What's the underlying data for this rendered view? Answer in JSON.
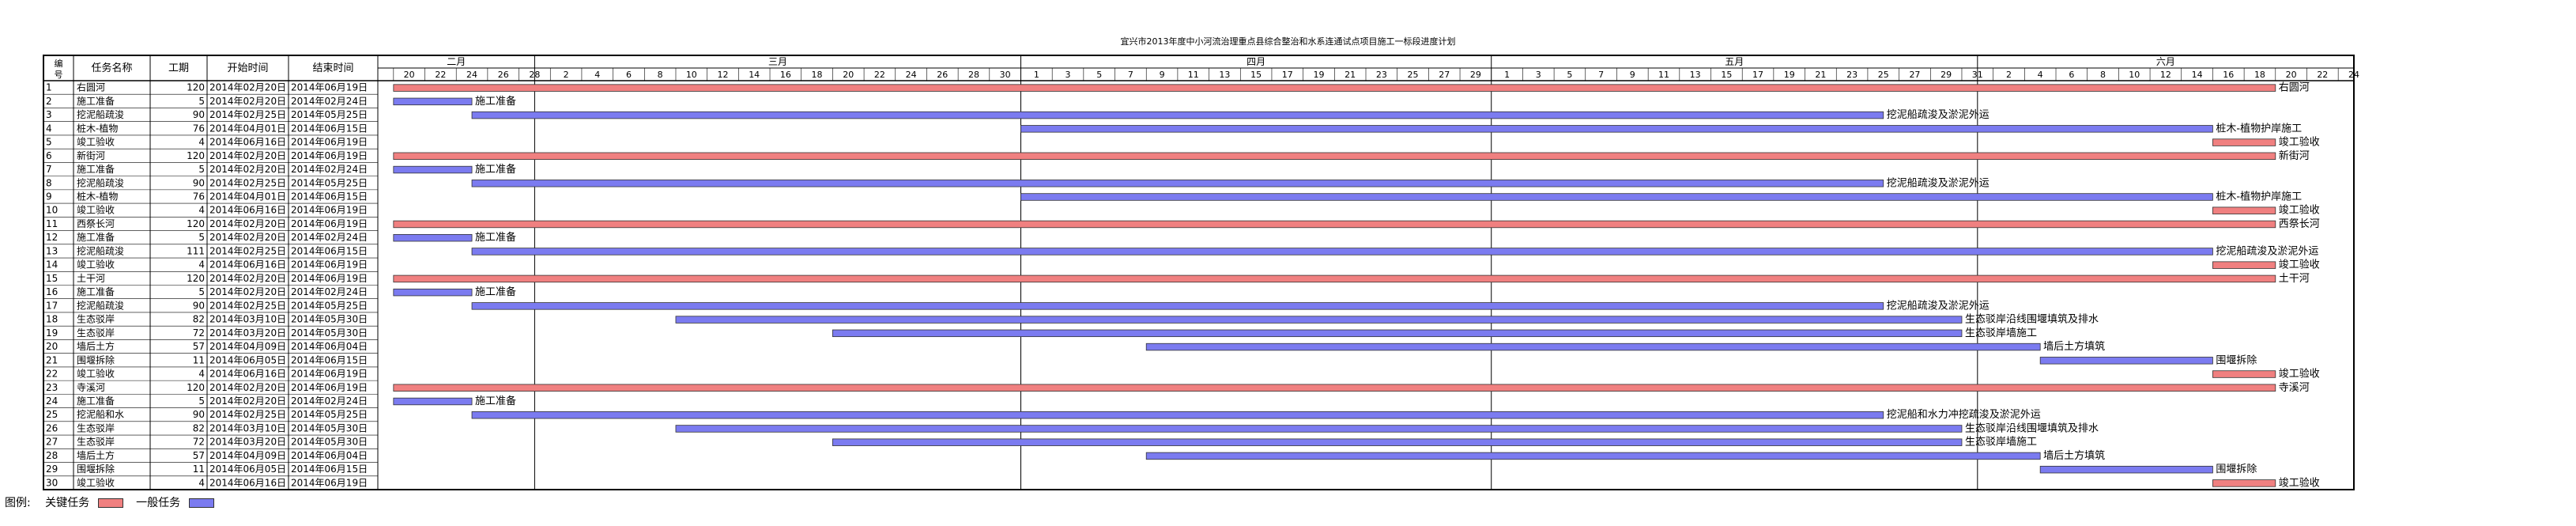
{
  "title": "宜兴市2013年度中小河流治理重点县综合整治和水系连通试点项目施工一标段进度计划",
  "legend": {
    "label": "图例:",
    "critical": "关键任务",
    "normal": "一般任务",
    "critical_color": "#f08080",
    "normal_color": "#7b7bf0"
  },
  "columns": {
    "id": "编号",
    "name": "任务名称",
    "duration": "工期",
    "start": "开始时间",
    "end": "结束时间"
  },
  "months": [
    {
      "label": "二月",
      "days": [
        "20",
        "22",
        "24",
        "26",
        "28"
      ]
    },
    {
      "label": "三月",
      "days": [
        "2",
        "4",
        "6",
        "8",
        "10",
        "12",
        "14",
        "16",
        "18",
        "20",
        "22",
        "24",
        "26",
        "28",
        "30"
      ]
    },
    {
      "label": "四月",
      "days": [
        "1",
        "3",
        "5",
        "7",
        "9",
        "11",
        "13",
        "15",
        "17",
        "19",
        "21",
        "23",
        "25",
        "27",
        "29"
      ]
    },
    {
      "label": "五月",
      "days": [
        "1",
        "3",
        "5",
        "7",
        "9",
        "11",
        "13",
        "15",
        "17",
        "19",
        "21",
        "23",
        "25",
        "27",
        "29",
        "31"
      ]
    },
    {
      "label": "六月",
      "days": [
        "2",
        "4",
        "6",
        "8",
        "10",
        "12",
        "14",
        "16",
        "18",
        "20",
        "22",
        "24"
      ]
    }
  ],
  "chart_data": {
    "type": "gantt",
    "x_range": [
      "2014-02-19",
      "2014-06-25"
    ],
    "tasks": [
      {
        "id": "1",
        "name": "右圆河",
        "duration": "120",
        "start": "2014年02月20日",
        "end": "2014年06月19日",
        "s": "2014-02-20",
        "e": "2014-06-19",
        "type": "critical",
        "label": "右圆河"
      },
      {
        "id": "2",
        "name": "施工准备",
        "duration": "5",
        "start": "2014年02月20日",
        "end": "2014年02月24日",
        "s": "2014-02-20",
        "e": "2014-02-24",
        "type": "normal",
        "label": "施工准备"
      },
      {
        "id": "3",
        "name": "挖泥船疏浚",
        "duration": "90",
        "start": "2014年02月25日",
        "end": "2014年05月25日",
        "s": "2014-02-25",
        "e": "2014-05-25",
        "type": "normal",
        "label": "挖泥船疏浚及淤泥外运"
      },
      {
        "id": "4",
        "name": "桩木-植物",
        "duration": "76",
        "start": "2014年04月01日",
        "end": "2014年06月15日",
        "s": "2014-04-01",
        "e": "2014-06-15",
        "type": "normal",
        "label": "桩木-植物护岸施工"
      },
      {
        "id": "5",
        "name": "竣工验收",
        "duration": "4",
        "start": "2014年06月16日",
        "end": "2014年06月19日",
        "s": "2014-06-16",
        "e": "2014-06-19",
        "type": "critical",
        "label": "竣工验收"
      },
      {
        "id": "6",
        "name": "新街河",
        "duration": "120",
        "start": "2014年02月20日",
        "end": "2014年06月19日",
        "s": "2014-02-20",
        "e": "2014-06-19",
        "type": "critical",
        "label": "新街河"
      },
      {
        "id": "7",
        "name": "施工准备",
        "duration": "5",
        "start": "2014年02月20日",
        "end": "2014年02月24日",
        "s": "2014-02-20",
        "e": "2014-02-24",
        "type": "normal",
        "label": "施工准备"
      },
      {
        "id": "8",
        "name": "挖泥船疏浚",
        "duration": "90",
        "start": "2014年02月25日",
        "end": "2014年05月25日",
        "s": "2014-02-25",
        "e": "2014-05-25",
        "type": "normal",
        "label": "挖泥船疏浚及淤泥外运"
      },
      {
        "id": "9",
        "name": "桩木-植物",
        "duration": "76",
        "start": "2014年04月01日",
        "end": "2014年06月15日",
        "s": "2014-04-01",
        "e": "2014-06-15",
        "type": "normal",
        "label": "桩木-植物护岸施工"
      },
      {
        "id": "10",
        "name": "竣工验收",
        "duration": "4",
        "start": "2014年06月16日",
        "end": "2014年06月19日",
        "s": "2014-06-16",
        "e": "2014-06-19",
        "type": "critical",
        "label": "竣工验收"
      },
      {
        "id": "11",
        "name": "西祭长河",
        "duration": "120",
        "start": "2014年02月20日",
        "end": "2014年06月19日",
        "s": "2014-02-20",
        "e": "2014-06-19",
        "type": "critical",
        "label": "西祭长河"
      },
      {
        "id": "12",
        "name": "施工准备",
        "duration": "5",
        "start": "2014年02月20日",
        "end": "2014年02月24日",
        "s": "2014-02-20",
        "e": "2014-02-24",
        "type": "normal",
        "label": "施工准备"
      },
      {
        "id": "13",
        "name": "挖泥船疏浚",
        "duration": "111",
        "start": "2014年02月25日",
        "end": "2014年06月15日",
        "s": "2014-02-25",
        "e": "2014-06-15",
        "type": "normal",
        "label": "挖泥船疏浚及淤泥外运"
      },
      {
        "id": "14",
        "name": "竣工验收",
        "duration": "4",
        "start": "2014年06月16日",
        "end": "2014年06月19日",
        "s": "2014-06-16",
        "e": "2014-06-19",
        "type": "critical",
        "label": "竣工验收"
      },
      {
        "id": "15",
        "name": "土干河",
        "duration": "120",
        "start": "2014年02月20日",
        "end": "2014年06月19日",
        "s": "2014-02-20",
        "e": "2014-06-19",
        "type": "critical",
        "label": "土干河"
      },
      {
        "id": "16",
        "name": "施工准备",
        "duration": "5",
        "start": "2014年02月20日",
        "end": "2014年02月24日",
        "s": "2014-02-20",
        "e": "2014-02-24",
        "type": "normal",
        "label": "施工准备"
      },
      {
        "id": "17",
        "name": "挖泥船疏浚",
        "duration": "90",
        "start": "2014年02月25日",
        "end": "2014年05月25日",
        "s": "2014-02-25",
        "e": "2014-05-25",
        "type": "normal",
        "label": "挖泥船疏浚及淤泥外运"
      },
      {
        "id": "18",
        "name": "生态驳岸",
        "duration": "82",
        "start": "2014年03月10日",
        "end": "2014年05月30日",
        "s": "2014-03-10",
        "e": "2014-05-30",
        "type": "normal",
        "label": "生态驳岸沿线围堰填筑及排水"
      },
      {
        "id": "19",
        "name": "生态驳岸",
        "duration": "72",
        "start": "2014年03月20日",
        "end": "2014年05月30日",
        "s": "2014-03-20",
        "e": "2014-05-30",
        "type": "normal",
        "label": "生态驳岸墙施工"
      },
      {
        "id": "20",
        "name": "墙后土方",
        "duration": "57",
        "start": "2014年04月09日",
        "end": "2014年06月04日",
        "s": "2014-04-09",
        "e": "2014-06-04",
        "type": "normal",
        "label": "墙后土方填筑"
      },
      {
        "id": "21",
        "name": "围堰拆除",
        "duration": "11",
        "start": "2014年06月05日",
        "end": "2014年06月15日",
        "s": "2014-06-05",
        "e": "2014-06-15",
        "type": "normal",
        "label": "围堰拆除"
      },
      {
        "id": "22",
        "name": "竣工验收",
        "duration": "4",
        "start": "2014年06月16日",
        "end": "2014年06月19日",
        "s": "2014-06-16",
        "e": "2014-06-19",
        "type": "critical",
        "label": "竣工验收"
      },
      {
        "id": "23",
        "name": "寺溪河",
        "duration": "120",
        "start": "2014年02月20日",
        "end": "2014年06月19日",
        "s": "2014-02-20",
        "e": "2014-06-19",
        "type": "critical",
        "label": "寺溪河"
      },
      {
        "id": "24",
        "name": "施工准备",
        "duration": "5",
        "start": "2014年02月20日",
        "end": "2014年02月24日",
        "s": "2014-02-20",
        "e": "2014-02-24",
        "type": "normal",
        "label": "施工准备"
      },
      {
        "id": "25",
        "name": "挖泥船和水",
        "duration": "90",
        "start": "2014年02月25日",
        "end": "2014年05月25日",
        "s": "2014-02-25",
        "e": "2014-05-25",
        "type": "normal",
        "label": "挖泥船和水力冲挖疏浚及淤泥外运"
      },
      {
        "id": "26",
        "name": "生态驳岸",
        "duration": "82",
        "start": "2014年03月10日",
        "end": "2014年05月30日",
        "s": "2014-03-10",
        "e": "2014-05-30",
        "type": "normal",
        "label": "生态驳岸沿线围堰填筑及排水"
      },
      {
        "id": "27",
        "name": "生态驳岸",
        "duration": "72",
        "start": "2014年03月20日",
        "end": "2014年05月30日",
        "s": "2014-03-20",
        "e": "2014-05-30",
        "type": "normal",
        "label": "生态驳岸墙施工"
      },
      {
        "id": "28",
        "name": "墙后土方",
        "duration": "57",
        "start": "2014年04月09日",
        "end": "2014年06月04日",
        "s": "2014-04-09",
        "e": "2014-06-04",
        "type": "normal",
        "label": "墙后土方填筑"
      },
      {
        "id": "29",
        "name": "围堰拆除",
        "duration": "11",
        "start": "2014年06月05日",
        "end": "2014年06月15日",
        "s": "2014-06-05",
        "e": "2014-06-15",
        "type": "normal",
        "label": "围堰拆除"
      },
      {
        "id": "30",
        "name": "竣工验收",
        "duration": "4",
        "start": "2014年06月16日",
        "end": "2014年06月19日",
        "s": "2014-06-16",
        "e": "2014-06-19",
        "type": "critical",
        "label": "竣工验收"
      }
    ]
  }
}
